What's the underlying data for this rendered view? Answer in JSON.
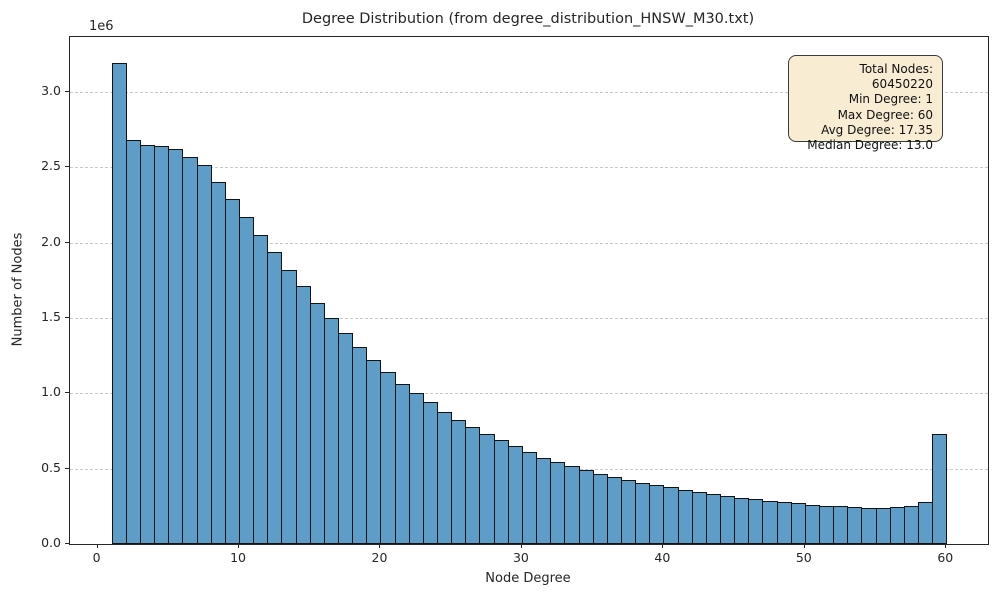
{
  "figure": {
    "title": "Degree Distribution (from degree_distribution_HNSW_M30.txt)",
    "xlabel": "Node Degree",
    "ylabel": "Number of Nodes",
    "y_offset_label": "1e6"
  },
  "stats_box": {
    "lines": [
      "Total Nodes: 60450220",
      "Min Degree: 1",
      "Max Degree: 60",
      "Avg Degree: 17.35",
      "Median Degree: 13.0"
    ],
    "background": "#f8ecd3",
    "border_color": "#3b3b3b"
  },
  "chart_data": {
    "type": "bar",
    "subtype": "histogram",
    "title": "Degree Distribution (from degree_distribution_HNSW_M30.txt)",
    "xlabel": "Node Degree",
    "ylabel": "Number of Nodes",
    "y_scale_label": "1e6",
    "bin_width": 1,
    "bin_left_edges": [
      1,
      2,
      3,
      4,
      5,
      6,
      7,
      8,
      9,
      10,
      11,
      12,
      13,
      14,
      15,
      16,
      17,
      18,
      19,
      20,
      21,
      22,
      23,
      24,
      25,
      26,
      27,
      28,
      29,
      30,
      31,
      32,
      33,
      34,
      35,
      36,
      37,
      38,
      39,
      40,
      41,
      42,
      43,
      44,
      45,
      46,
      47,
      48,
      49,
      50,
      51,
      52,
      53,
      54,
      55,
      56,
      57,
      58,
      59
    ],
    "values": [
      3190000,
      2680000,
      2645000,
      2640000,
      2620000,
      2570000,
      2515000,
      2405000,
      2290000,
      2170000,
      2050000,
      1935000,
      1820000,
      1710000,
      1600000,
      1500000,
      1400000,
      1305000,
      1220000,
      1140000,
      1065000,
      1000000,
      940000,
      875000,
      820000,
      775000,
      730000,
      688000,
      648000,
      610000,
      574000,
      543000,
      517000,
      492000,
      467000,
      446000,
      426000,
      408000,
      391000,
      375000,
      359000,
      344000,
      330000,
      318000,
      308000,
      298000,
      288000,
      279000,
      270000,
      262000,
      255000,
      249000,
      244000,
      240000,
      241000,
      244000,
      250000,
      276000,
      731000
    ],
    "xticks": [
      0,
      10,
      20,
      30,
      40,
      50,
      60
    ],
    "yticks": [
      0,
      500000,
      1000000,
      1500000,
      2000000,
      2500000,
      3000000
    ],
    "xlim": [
      -1.95,
      62.95
    ],
    "ylim": [
      0,
      3364000
    ],
    "grid": "horizontal-dashed",
    "legend_position": "none",
    "bar_color": "#5f9dc9",
    "bar_edge_color": "#131313",
    "annotation_box": {
      "total_nodes": 60450220,
      "min_degree": 1,
      "max_degree": 60,
      "avg_degree": 17.35,
      "median_degree": 13.0
    }
  }
}
